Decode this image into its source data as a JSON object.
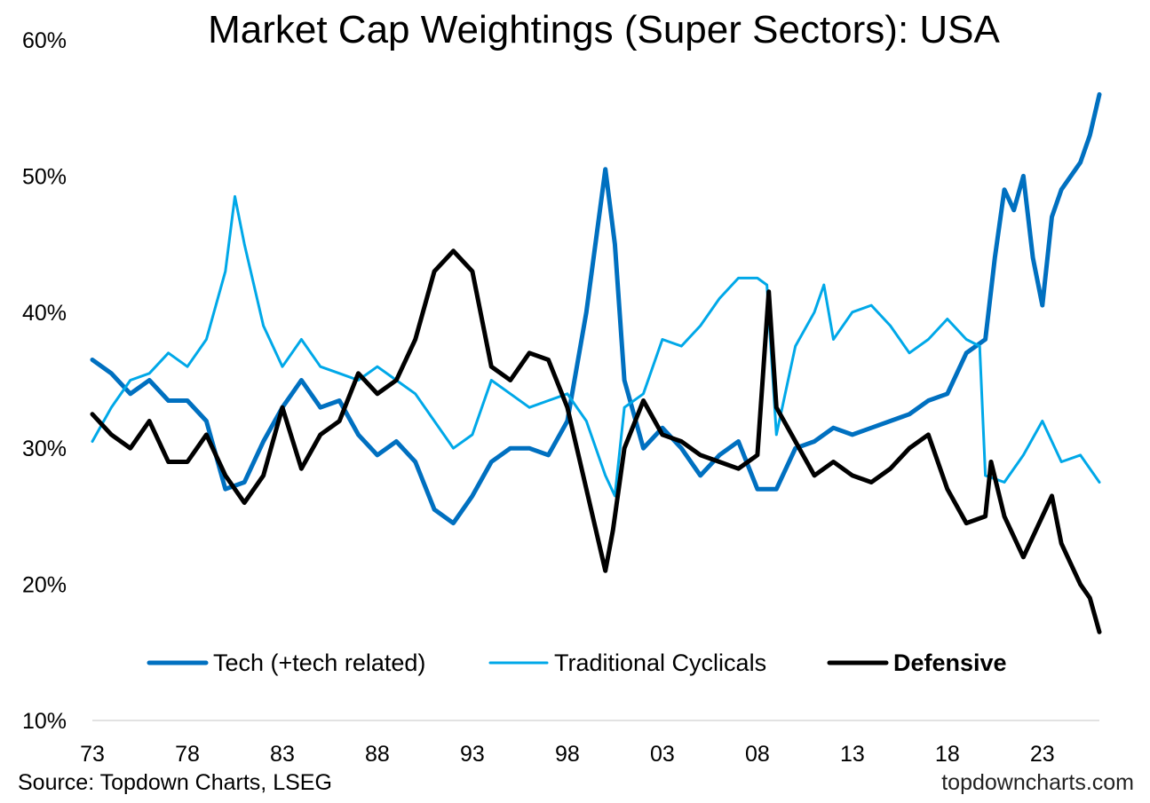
{
  "chart_data": {
    "type": "line",
    "title": "Market Cap Weightings (Super Sectors): USA",
    "xlabel": "",
    "ylabel": "",
    "x_range": [
      1973,
      2026
    ],
    "ylim": [
      10,
      60
    ],
    "x_ticks": [
      {
        "value": 1973,
        "label": "73"
      },
      {
        "value": 1978,
        "label": "78"
      },
      {
        "value": 1983,
        "label": "83"
      },
      {
        "value": 1988,
        "label": "88"
      },
      {
        "value": 1993,
        "label": "93"
      },
      {
        "value": 1998,
        "label": "98"
      },
      {
        "value": 2003,
        "label": "03"
      },
      {
        "value": 2008,
        "label": "08"
      },
      {
        "value": 2013,
        "label": "13"
      },
      {
        "value": 2018,
        "label": "18"
      },
      {
        "value": 2023,
        "label": "23"
      }
    ],
    "y_ticks": [
      {
        "value": 10,
        "label": "10%"
      },
      {
        "value": 20,
        "label": "20%"
      },
      {
        "value": 30,
        "label": "30%"
      },
      {
        "value": 40,
        "label": "40%"
      },
      {
        "value": 50,
        "label": "50%"
      },
      {
        "value": 60,
        "label": "60%"
      }
    ],
    "grid": false,
    "legend_position": "bottom-center",
    "series": [
      {
        "name": "Tech (+tech related)",
        "color": "#0070C0",
        "x": [
          1973,
          1974,
          1975,
          1976,
          1977,
          1978,
          1979,
          1980,
          1981,
          1982,
          1983,
          1984,
          1985,
          1986,
          1987,
          1988,
          1989,
          1990,
          1991,
          1992,
          1993,
          1994,
          1995,
          1996,
          1997,
          1998,
          1999,
          2000,
          2000.5,
          2001,
          2002,
          2003,
          2004,
          2005,
          2006,
          2007,
          2008,
          2009,
          2010,
          2011,
          2012,
          2013,
          2014,
          2015,
          2016,
          2017,
          2018,
          2019,
          2020,
          2020.5,
          2021,
          2021.5,
          2022,
          2022.5,
          2023,
          2023.5,
          2024,
          2025,
          2025.5,
          2026
        ],
        "values": [
          36.5,
          35.5,
          34.0,
          35.0,
          33.5,
          33.5,
          32.0,
          27.0,
          27.5,
          30.5,
          33.0,
          35.0,
          33.0,
          33.5,
          31.0,
          29.5,
          30.5,
          29.0,
          25.5,
          24.5,
          26.5,
          29.0,
          30.0,
          30.0,
          29.5,
          32.0,
          40.0,
          50.5,
          45.0,
          35.0,
          30.0,
          31.5,
          30.0,
          28.0,
          29.5,
          30.5,
          27.0,
          27.0,
          30.0,
          30.5,
          31.5,
          31.0,
          31.5,
          32.0,
          32.5,
          33.5,
          34.0,
          37.0,
          38.0,
          44.0,
          49.0,
          47.5,
          50.0,
          44.0,
          40.5,
          47.0,
          49.0,
          51.0,
          53.0,
          56.0
        ]
      },
      {
        "name": "Traditional Cyclicals",
        "color": "#00A8E8",
        "x": [
          1973,
          1974,
          1975,
          1976,
          1977,
          1978,
          1979,
          1980,
          1980.5,
          1981,
          1982,
          1983,
          1984,
          1985,
          1986,
          1987,
          1988,
          1989,
          1990,
          1991,
          1992,
          1993,
          1994,
          1995,
          1996,
          1997,
          1998,
          1999,
          2000,
          2000.5,
          2001,
          2002,
          2003,
          2004,
          2005,
          2006,
          2007,
          2008,
          2008.5,
          2009,
          2010,
          2011,
          2011.5,
          2012,
          2013,
          2014,
          2015,
          2016,
          2017,
          2018,
          2019,
          2019.7,
          2020,
          2021,
          2022,
          2023,
          2024,
          2025,
          2026
        ],
        "values": [
          30.5,
          33.0,
          35.0,
          35.5,
          37.0,
          36.0,
          38.0,
          43.0,
          48.5,
          45.0,
          39.0,
          36.0,
          38.0,
          36.0,
          35.5,
          35.0,
          36.0,
          35.0,
          34.0,
          32.0,
          30.0,
          31.0,
          35.0,
          34.0,
          33.0,
          33.5,
          34.0,
          32.0,
          28.0,
          26.5,
          33.0,
          34.0,
          38.0,
          37.5,
          39.0,
          41.0,
          42.5,
          42.5,
          42.0,
          31.0,
          37.5,
          40.0,
          42.0,
          38.0,
          40.0,
          40.5,
          39.0,
          37.0,
          38.0,
          39.5,
          38.0,
          37.5,
          28.0,
          27.5,
          29.5,
          32.0,
          29.0,
          29.5,
          27.5
        ]
      },
      {
        "name": "Defensive",
        "color": "#000000",
        "x": [
          1973,
          1974,
          1975,
          1976,
          1977,
          1978,
          1979,
          1980,
          1981,
          1982,
          1983,
          1984,
          1985,
          1986,
          1987,
          1988,
          1989,
          1990,
          1991,
          1992,
          1993,
          1994,
          1995,
          1996,
          1997,
          1998,
          1999,
          2000,
          2000.4,
          2001,
          2002,
          2003,
          2004,
          2005,
          2006,
          2007,
          2008,
          2008.6,
          2009,
          2010,
          2011,
          2012,
          2013,
          2014,
          2015,
          2016,
          2017,
          2018,
          2019,
          2020,
          2020.3,
          2021,
          2022,
          2023,
          2023.5,
          2024,
          2025,
          2025.5,
          2026
        ],
        "values": [
          32.5,
          31.0,
          30.0,
          32.0,
          29.0,
          29.0,
          31.0,
          28.0,
          26.0,
          28.0,
          33.0,
          28.5,
          31.0,
          32.0,
          35.5,
          34.0,
          35.0,
          38.0,
          43.0,
          44.5,
          43.0,
          36.0,
          35.0,
          37.0,
          36.5,
          33.0,
          27.0,
          21.0,
          24.0,
          30.0,
          33.5,
          31.0,
          30.5,
          29.5,
          29.0,
          28.5,
          29.5,
          41.5,
          33.0,
          30.5,
          28.0,
          29.0,
          28.0,
          27.5,
          28.5,
          30.0,
          31.0,
          27.0,
          24.5,
          25.0,
          29.0,
          25.0,
          22.0,
          25.0,
          26.5,
          23.0,
          20.0,
          19.0,
          16.5
        ]
      }
    ]
  },
  "footer": {
    "source": "Source: Topdown Charts, LSEG",
    "brand": "topdowncharts.com"
  }
}
